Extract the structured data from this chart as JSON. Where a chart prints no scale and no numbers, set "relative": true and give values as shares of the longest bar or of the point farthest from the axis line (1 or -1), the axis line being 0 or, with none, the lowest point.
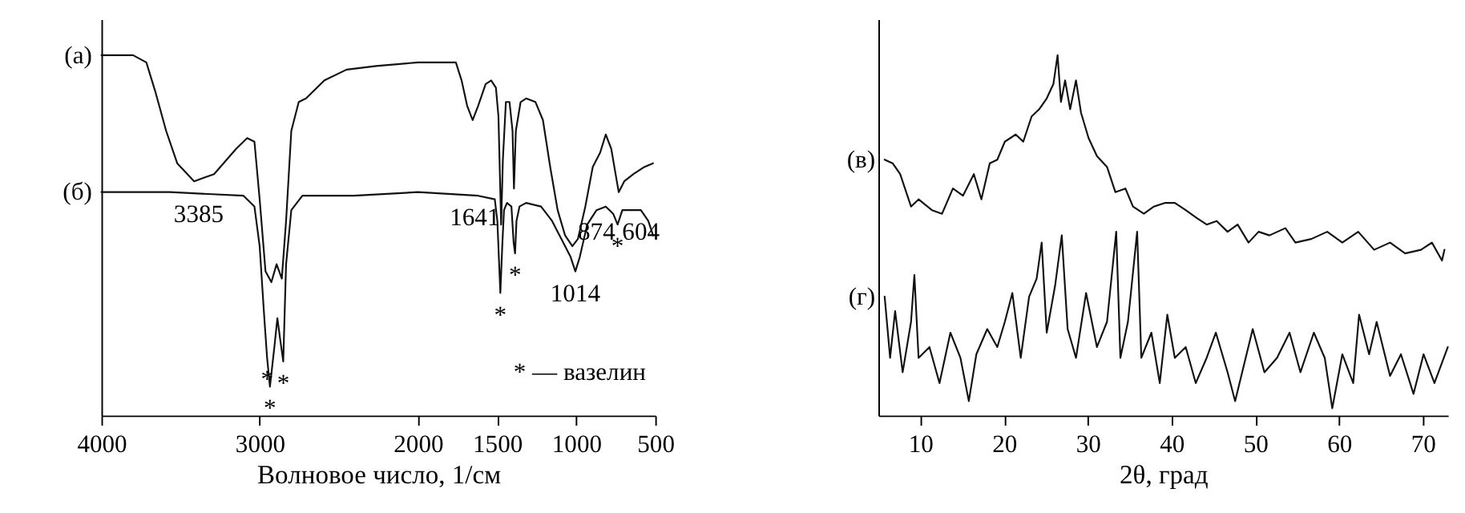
{
  "chart_data": [
    {
      "type": "line",
      "relative": true,
      "xlabel": "Волновое число, 1/см",
      "xlim": [
        4000,
        500
      ],
      "xticks": [
        4000,
        3000,
        2000,
        1500,
        1000,
        500
      ],
      "grid": false,
      "legend": false,
      "marker": "none",
      "line_style": "solid",
      "series": [
        {
          "name": "(а)",
          "color": "#111111",
          "x": [
            4000,
            3800,
            3716,
            3660,
            3591,
            3521,
            3414,
            3288,
            3149,
            3079,
            3033,
            3000,
            2963,
            2926,
            2893,
            2860,
            2833,
            2800,
            2753,
            2707,
            2591,
            2451,
            2265,
            2000,
            1853,
            1760,
            1724,
            1689,
            1654,
            1619,
            1572,
            1537,
            1507,
            1491,
            1474,
            1463,
            1444,
            1421,
            1402,
            1393,
            1381,
            1351,
            1316,
            1257,
            1210,
            1164,
            1117,
            1070,
            1024,
            989,
            942,
            895,
            848,
            813,
            778,
            743,
            731,
            696,
            638,
            568,
            514
          ],
          "values": [
            1.0,
            1.0,
            0.98,
            0.9,
            0.79,
            0.7,
            0.65,
            0.67,
            0.74,
            0.77,
            0.76,
            0.6,
            0.4,
            0.37,
            0.42,
            0.38,
            0.54,
            0.79,
            0.87,
            0.88,
            0.93,
            0.96,
            0.97,
            0.98,
            0.98,
            0.98,
            0.93,
            0.86,
            0.82,
            0.86,
            0.92,
            0.93,
            0.91,
            0.83,
            0.53,
            0.71,
            0.87,
            0.87,
            0.79,
            0.63,
            0.79,
            0.87,
            0.88,
            0.87,
            0.82,
            0.69,
            0.57,
            0.5,
            0.47,
            0.49,
            0.58,
            0.69,
            0.73,
            0.78,
            0.74,
            0.65,
            0.62,
            0.65,
            0.67,
            0.69,
            0.7
          ]
        },
        {
          "name": "(б)",
          "color": "#111111",
          "x": [
            4000,
            3567,
            3102,
            3033,
            3000,
            2972,
            2953,
            2935,
            2907,
            2888,
            2870,
            2851,
            2833,
            2800,
            2730,
            2405,
            2000,
            1619,
            1514,
            1498,
            1479,
            1467,
            1456,
            1437,
            1409,
            1395,
            1386,
            1377,
            1358,
            1316,
            1222,
            1152,
            1082,
            1035,
            1005,
            977,
            930,
            871,
            813,
            766,
            738,
            708,
            661,
            591,
            544,
            514
          ],
          "values": [
            0.62,
            0.62,
            0.61,
            0.58,
            0.47,
            0.28,
            0.16,
            0.08,
            0.19,
            0.27,
            0.21,
            0.15,
            0.42,
            0.57,
            0.61,
            0.61,
            0.62,
            0.61,
            0.6,
            0.54,
            0.34,
            0.47,
            0.57,
            0.59,
            0.58,
            0.48,
            0.45,
            0.54,
            0.58,
            0.59,
            0.58,
            0.54,
            0.48,
            0.44,
            0.4,
            0.44,
            0.53,
            0.57,
            0.58,
            0.56,
            0.53,
            0.57,
            0.57,
            0.57,
            0.54,
            0.5
          ]
        }
      ],
      "annotations": [
        {
          "text": "3385",
          "x": 3385,
          "y": 0.62
        },
        {
          "text": "1641",
          "x": 1641,
          "y": 0.61
        },
        {
          "text": "1014",
          "x": 1005,
          "y": 0.4
        },
        {
          "text": "874",
          "x": 871,
          "y": 0.57
        },
        {
          "text": "604",
          "x": 591,
          "y": 0.57
        },
        {
          "text": "*",
          "x": 2953,
          "y": 0.16
        },
        {
          "text": "*",
          "x": 2935,
          "y": 0.08
        },
        {
          "text": "*",
          "x": 2851,
          "y": 0.15
        },
        {
          "text": "*",
          "x": 1479,
          "y": 0.34
        },
        {
          "text": "*",
          "x": 1386,
          "y": 0.45
        },
        {
          "text": "*",
          "x": 738,
          "y": 0.53
        },
        "* — вазелин"
      ]
    },
    {
      "type": "line",
      "relative": true,
      "xlabel": "2θ, град",
      "xlim": [
        5,
        73
      ],
      "xticks": [
        10,
        20,
        30,
        40,
        50,
        60,
        70
      ],
      "grid": false,
      "legend": false,
      "marker": "none",
      "line_style": "solid",
      "series": [
        {
          "name": "(в)",
          "color": "#111111",
          "x": [
            5.75,
            6.7,
            7.6,
            8.9,
            9.8,
            11.4,
            12.6,
            13.9,
            15.1,
            16.4,
            17.3,
            18.3,
            19.2,
            20.1,
            21.4,
            22.3,
            23.3,
            24.2,
            25.1,
            25.9,
            26.4,
            26.8,
            27.3,
            27.9,
            28.6,
            29.2,
            30.1,
            31.1,
            32.3,
            33.3,
            34.5,
            35.4,
            36.7,
            37.9,
            39.2,
            40.4,
            41.7,
            42.9,
            44.2,
            45.4,
            46.7,
            47.9,
            49.2,
            50.4,
            51.7,
            53.6,
            54.8,
            56.7,
            58.6,
            60.4,
            62.3,
            64.2,
            66.1,
            67.9,
            69.8,
            71.1,
            72.3,
            72.6
          ],
          "values": [
            0.71,
            0.7,
            0.67,
            0.58,
            0.6,
            0.57,
            0.56,
            0.63,
            0.61,
            0.67,
            0.6,
            0.7,
            0.71,
            0.76,
            0.78,
            0.76,
            0.83,
            0.85,
            0.88,
            0.92,
            1.0,
            0.87,
            0.93,
            0.85,
            0.93,
            0.84,
            0.77,
            0.72,
            0.69,
            0.62,
            0.63,
            0.58,
            0.56,
            0.58,
            0.59,
            0.59,
            0.57,
            0.55,
            0.53,
            0.54,
            0.51,
            0.53,
            0.48,
            0.51,
            0.5,
            0.52,
            0.48,
            0.49,
            0.51,
            0.48,
            0.51,
            0.46,
            0.48,
            0.45,
            0.46,
            0.48,
            0.43,
            0.46
          ]
        },
        {
          "name": "(г)",
          "color": "#111111",
          "x": [
            5.75,
            6.4,
            7.0,
            7.9,
            8.9,
            9.3,
            9.8,
            11.1,
            12.3,
            13.6,
            14.8,
            15.8,
            16.7,
            18.0,
            19.2,
            20.1,
            21.0,
            22.0,
            23.0,
            23.9,
            24.5,
            25.1,
            26.1,
            26.9,
            27.6,
            28.6,
            29.8,
            31.1,
            32.3,
            33.4,
            33.9,
            34.8,
            35.9,
            36.4,
            37.6,
            38.6,
            39.5,
            40.4,
            41.7,
            42.9,
            44.2,
            45.3,
            46.7,
            47.6,
            49.7,
            51.1,
            52.6,
            54.1,
            55.4,
            57.0,
            58.3,
            59.2,
            60.4,
            61.7,
            62.4,
            63.6,
            64.5,
            66.1,
            67.4,
            68.9,
            70.1,
            71.4,
            73.0
          ],
          "values": [
            0.33,
            0.16,
            0.29,
            0.12,
            0.26,
            0.39,
            0.16,
            0.19,
            0.09,
            0.23,
            0.16,
            0.04,
            0.17,
            0.24,
            0.19,
            0.26,
            0.34,
            0.16,
            0.33,
            0.38,
            0.48,
            0.23,
            0.36,
            0.5,
            0.24,
            0.16,
            0.34,
            0.19,
            0.26,
            0.51,
            0.16,
            0.26,
            0.51,
            0.16,
            0.23,
            0.09,
            0.28,
            0.16,
            0.19,
            0.09,
            0.16,
            0.23,
            0.12,
            0.04,
            0.24,
            0.12,
            0.16,
            0.23,
            0.12,
            0.23,
            0.16,
            0.02,
            0.17,
            0.09,
            0.28,
            0.17,
            0.26,
            0.11,
            0.17,
            0.06,
            0.17,
            0.09,
            0.19
          ]
        }
      ]
    }
  ]
}
